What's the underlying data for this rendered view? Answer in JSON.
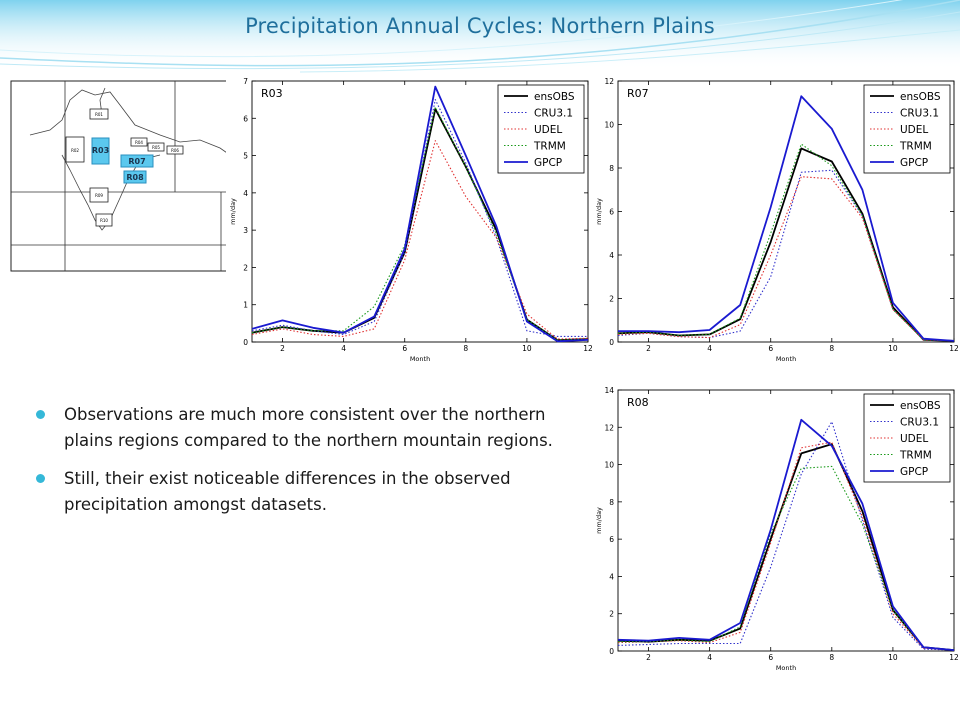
{
  "slide": {
    "title": "Precipitation Annual Cycles: Northern Plains",
    "bullets": [
      "Observations are much more consistent over the northern plains regions compared to the northern mountain regions.",
      "Still, their exist noticeable differences in the observed precipitation amongst datasets."
    ],
    "theme_colors": {
      "title": "#1f6f9c",
      "bullet": "#35b8d8",
      "highlight_box": "#5bc8ee"
    }
  },
  "map": {
    "regions": [
      "R01",
      "R02",
      "R03",
      "R04",
      "R05",
      "R06",
      "R07",
      "R08",
      "R09",
      "R10"
    ],
    "highlighted": [
      "R03",
      "R07",
      "R08"
    ]
  },
  "series_styles": [
    {
      "name": "ensOBS",
      "color": "#000000",
      "dash": "",
      "width": 1.8
    },
    {
      "name": "CRU3.1",
      "color": "#3333cc",
      "dash": "1.5,2",
      "width": 1.1
    },
    {
      "name": "UDEL",
      "color": "#e03030",
      "dash": "1.5,2",
      "width": 1.1
    },
    {
      "name": "TRMM",
      "color": "#1a9a1a",
      "dash": "1.5,2",
      "width": 1.1
    },
    {
      "name": "GPCP",
      "color": "#1a1ad0",
      "dash": "",
      "width": 1.8
    }
  ],
  "chart_data": [
    {
      "type": "line",
      "title": "R03",
      "xlabel": "Month",
      "ylabel": "mm/day",
      "xlim": [
        1,
        12
      ],
      "ylim": [
        0,
        7
      ],
      "xticks": [
        2,
        4,
        6,
        8,
        10,
        12
      ],
      "yticks": [
        0,
        1,
        2,
        3,
        4,
        5,
        6,
        7
      ],
      "legend": "top-right",
      "x": [
        1,
        2,
        3,
        4,
        5,
        6,
        7,
        8,
        9,
        10,
        11,
        12
      ],
      "series": [
        {
          "name": "ensOBS",
          "values": [
            0.25,
            0.4,
            0.3,
            0.25,
            0.65,
            2.4,
            6.25,
            4.7,
            3.0,
            0.6,
            0.05,
            0.08
          ]
        },
        {
          "name": "CRU3.1",
          "values": [
            0.3,
            0.45,
            0.3,
            0.2,
            0.55,
            2.4,
            6.5,
            4.8,
            2.8,
            0.3,
            0.15,
            0.15
          ]
        },
        {
          "name": "UDEL",
          "values": [
            0.2,
            0.35,
            0.2,
            0.15,
            0.35,
            2.2,
            5.4,
            3.9,
            2.8,
            0.75,
            0.08,
            0.1
          ]
        },
        {
          "name": "TRMM",
          "values": [
            0.25,
            0.4,
            0.3,
            0.3,
            0.95,
            2.6,
            6.3,
            4.7,
            2.9,
            0.6,
            0.05,
            0.08
          ]
        },
        {
          "name": "GPCP",
          "values": [
            0.35,
            0.58,
            0.38,
            0.25,
            0.68,
            2.5,
            6.85,
            5.0,
            3.1,
            0.55,
            0.02,
            0.06
          ]
        }
      ]
    },
    {
      "type": "line",
      "title": "R07",
      "xlabel": "Month",
      "ylabel": "mm/day",
      "xlim": [
        1,
        12
      ],
      "ylim": [
        0,
        12
      ],
      "xticks": [
        2,
        4,
        6,
        8,
        10,
        12
      ],
      "yticks": [
        0,
        2,
        4,
        6,
        8,
        10,
        12
      ],
      "legend": "top-right",
      "x": [
        1,
        2,
        3,
        4,
        5,
        6,
        7,
        8,
        9,
        10,
        11,
        12
      ],
      "series": [
        {
          "name": "ensOBS",
          "values": [
            0.4,
            0.45,
            0.3,
            0.35,
            1.05,
            4.6,
            8.9,
            8.3,
            5.9,
            1.6,
            0.1,
            0.05
          ]
        },
        {
          "name": "CRU3.1",
          "values": [
            0.3,
            0.4,
            0.25,
            0.2,
            0.5,
            3.0,
            7.8,
            7.9,
            5.8,
            1.5,
            0.1,
            0.05
          ]
        },
        {
          "name": "UDEL",
          "values": [
            0.35,
            0.4,
            0.25,
            0.2,
            0.8,
            4.0,
            7.6,
            7.5,
            5.7,
            1.5,
            0.1,
            0.05
          ]
        },
        {
          "name": "TRMM",
          "values": [
            0.4,
            0.45,
            0.3,
            0.35,
            1.1,
            5.0,
            9.1,
            8.1,
            5.8,
            1.5,
            0.1,
            0.05
          ]
        },
        {
          "name": "GPCP",
          "values": [
            0.5,
            0.5,
            0.45,
            0.55,
            1.7,
            6.2,
            11.3,
            9.8,
            7.0,
            1.8,
            0.15,
            0.05
          ]
        }
      ]
    },
    {
      "type": "line",
      "title": "R08",
      "xlabel": "Month",
      "ylabel": "mm/day",
      "xlim": [
        1,
        12
      ],
      "ylim": [
        0,
        14
      ],
      "xticks": [
        2,
        4,
        6,
        8,
        10,
        12
      ],
      "yticks": [
        0,
        2,
        4,
        6,
        8,
        10,
        12,
        14
      ],
      "legend": "top-right",
      "x": [
        1,
        2,
        3,
        4,
        5,
        6,
        7,
        8,
        9,
        10,
        11,
        12
      ],
      "series": [
        {
          "name": "ensOBS",
          "values": [
            0.55,
            0.5,
            0.6,
            0.55,
            1.2,
            6.0,
            10.6,
            11.1,
            7.5,
            2.2,
            0.2,
            0.05
          ]
        },
        {
          "name": "CRU3.1",
          "values": [
            0.3,
            0.35,
            0.4,
            0.4,
            0.4,
            4.5,
            9.5,
            12.3,
            7.0,
            1.8,
            0.1,
            0.05
          ]
        },
        {
          "name": "UDEL",
          "values": [
            0.45,
            0.5,
            0.55,
            0.45,
            1.0,
            5.8,
            10.9,
            11.2,
            7.2,
            2.0,
            0.15,
            0.05
          ]
        },
        {
          "name": "TRMM",
          "values": [
            0.5,
            0.5,
            0.6,
            0.5,
            1.3,
            6.3,
            9.8,
            9.9,
            6.8,
            2.2,
            0.2,
            0.05
          ]
        },
        {
          "name": "GPCP",
          "values": [
            0.6,
            0.55,
            0.7,
            0.6,
            1.5,
            6.5,
            12.4,
            11.0,
            7.9,
            2.4,
            0.2,
            0.05
          ]
        }
      ]
    }
  ]
}
